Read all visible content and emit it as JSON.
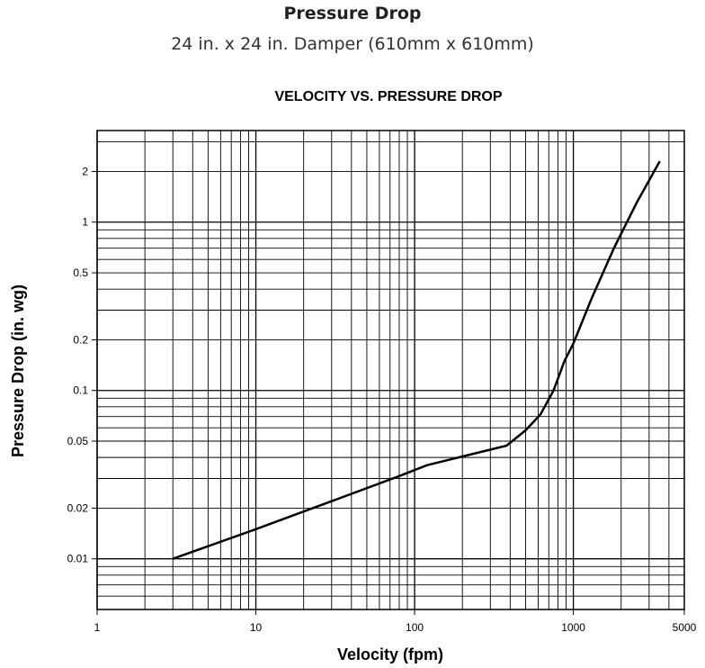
{
  "header": {
    "title": "Pressure Drop",
    "subtitle": "24 in. x 24 in. Damper (610mm x 610mm)"
  },
  "chart_data": {
    "type": "line",
    "title": "VELOCITY VS. PRESSURE DROP",
    "xlabel": "Velocity (fpm)",
    "ylabel": "Pressure Drop (in. wg)",
    "x_scale": "log",
    "y_scale": "log",
    "xlim": [
      1,
      5000
    ],
    "ylim": [
      0.005,
      3.5
    ],
    "x_ticks": [
      {
        "value": 1,
        "label": "1"
      },
      {
        "value": 10,
        "label": "10"
      },
      {
        "value": 100,
        "label": "100"
      },
      {
        "value": 1000,
        "label": "1000"
      },
      {
        "value": 5000,
        "label": "5000"
      }
    ],
    "y_ticks": [
      {
        "value": 0.01,
        "label": "0.01"
      },
      {
        "value": 0.02,
        "label": "0.02"
      },
      {
        "value": 0.05,
        "label": "0.05"
      },
      {
        "value": 0.1,
        "label": "0.1"
      },
      {
        "value": 0.2,
        "label": "0.2"
      },
      {
        "value": 0.5,
        "label": "0.5"
      },
      {
        "value": 1,
        "label": "1"
      },
      {
        "value": 2,
        "label": "2"
      }
    ],
    "grid": true,
    "line_color": "#000000",
    "series": [
      {
        "x": [
          3,
          10,
          30,
          80,
          120,
          380,
          500,
          620,
          750,
          880,
          1000,
          1300,
          1800,
          2500,
          3500
        ],
        "y": [
          0.01,
          0.015,
          0.022,
          0.031,
          0.036,
          0.047,
          0.058,
          0.072,
          0.1,
          0.15,
          0.19,
          0.35,
          0.7,
          1.3,
          2.3
        ]
      }
    ]
  }
}
